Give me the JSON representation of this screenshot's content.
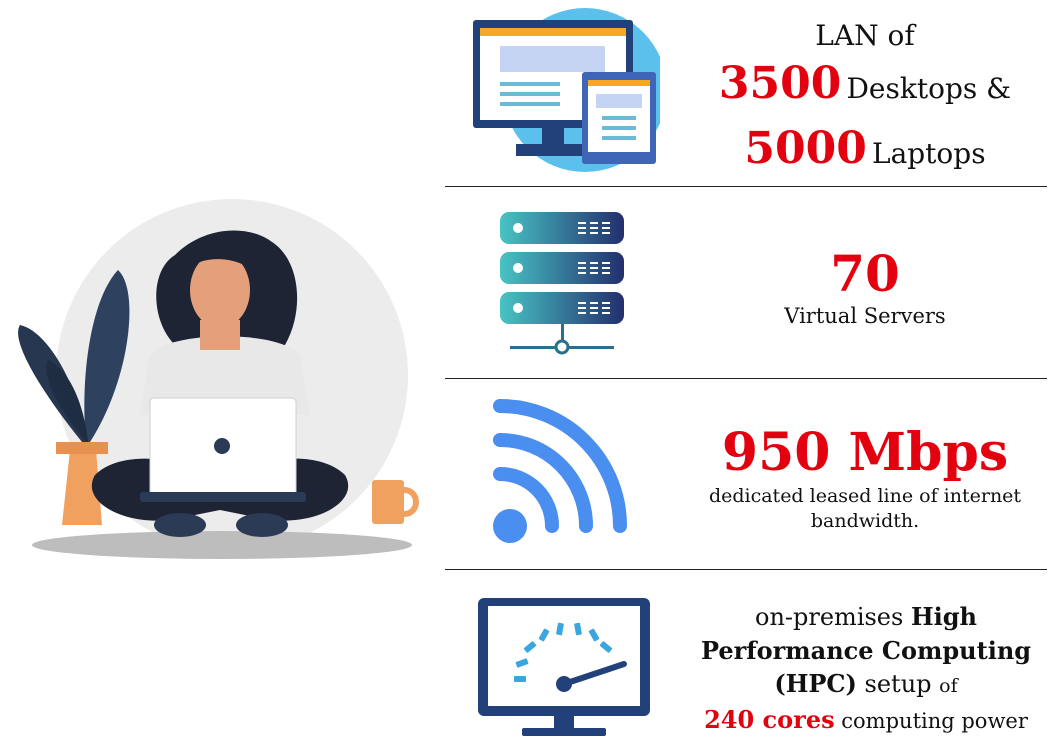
{
  "colors": {
    "accent_red": "#e3000f",
    "blue_icon": "#4a8ef0",
    "navy": "#22407a",
    "divider": "#222222"
  },
  "illustration": {
    "icon": "woman-with-laptop-illustration"
  },
  "rows": [
    {
      "icon": "computer-devices-icon",
      "line1": "LAN of",
      "line2_value": "3500",
      "line2_text": "Desktops &",
      "line3_value": "5000",
      "line3_text": "Laptops"
    },
    {
      "icon": "server-rack-icon",
      "value": "70",
      "caption": "Virtual Servers"
    },
    {
      "icon": "wifi-icon",
      "value": "950 Mbps",
      "caption_line1": "dedicated leased line of internet",
      "caption_line2": "bandwidth."
    },
    {
      "icon": "speedometer-monitor-icon",
      "line1_plain": "on-premises",
      "line1_bold": "High",
      "line2_bold": "Performance Computing",
      "line3_bold": "(HPC)",
      "line3_plain": "setup",
      "line3_small": "of",
      "line4_value": "240 cores",
      "line4_text": "computing power"
    }
  ]
}
